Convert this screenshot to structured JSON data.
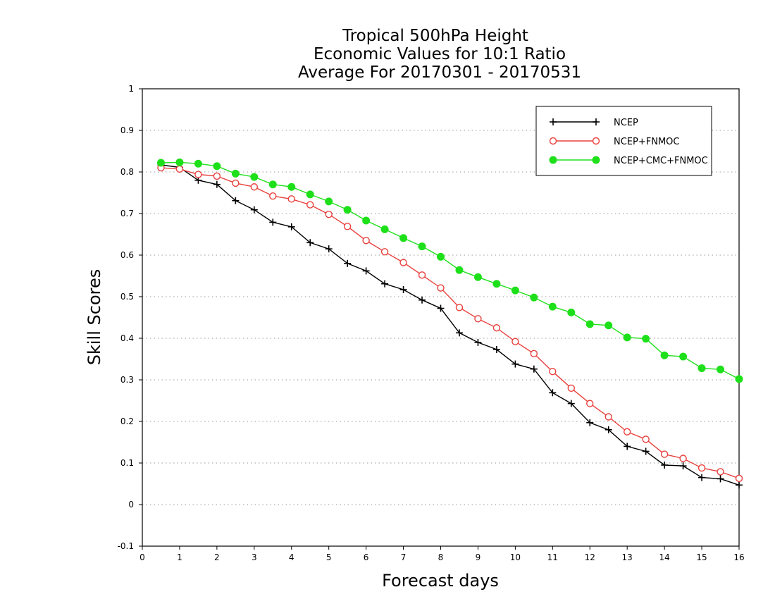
{
  "chart_data": {
    "type": "line",
    "title": [
      "Tropical 500hPa Height",
      "Economic Values for 10:1 Ratio",
      "Average For 20170301 - 20170531"
    ],
    "xlabel": "Forecast days",
    "ylabel": "Skill Scores",
    "xlim": [
      0,
      16
    ],
    "ylim": [
      -0.1,
      1
    ],
    "xticks": [
      "0",
      "1",
      "2",
      "3",
      "4",
      "5",
      "6",
      "7",
      "8",
      "9",
      "10",
      "11",
      "12",
      "13",
      "14",
      "15",
      "16"
    ],
    "yticks": [
      "-0.1",
      "0",
      "0.1",
      "0.2",
      "0.3",
      "0.4",
      "0.5",
      "0.6",
      "0.7",
      "0.8",
      "0.9",
      "1"
    ],
    "grid": true,
    "legend_position": "top-right",
    "x": [
      0.5,
      1,
      1.5,
      2,
      2.5,
      3,
      3.5,
      4,
      4.5,
      5,
      5.5,
      6,
      6.5,
      7,
      7.5,
      8,
      8.5,
      9,
      9.5,
      10,
      10.5,
      11,
      11.5,
      12,
      12.5,
      13,
      13.5,
      14,
      14.5,
      15,
      15.5,
      16
    ],
    "series": [
      {
        "name": "NCEP",
        "color": "#000000",
        "marker": "plus",
        "values": [
          0.817,
          0.811,
          0.78,
          0.77,
          0.731,
          0.709,
          0.679,
          0.668,
          0.63,
          0.615,
          0.58,
          0.562,
          0.531,
          0.517,
          0.492,
          0.472,
          0.413,
          0.39,
          0.373,
          0.338,
          0.326,
          0.269,
          0.243,
          0.197,
          0.18,
          0.14,
          0.128,
          0.095,
          0.093,
          0.065,
          0.062,
          0.047
        ]
      },
      {
        "name": "NCEP+FNMOC",
        "color": "#e8403c",
        "marker": "open-circle",
        "values": [
          0.81,
          0.807,
          0.794,
          0.79,
          0.773,
          0.764,
          0.742,
          0.735,
          0.721,
          0.698,
          0.669,
          0.635,
          0.608,
          0.582,
          0.552,
          0.521,
          0.474,
          0.447,
          0.425,
          0.392,
          0.363,
          0.32,
          0.28,
          0.243,
          0.211,
          0.175,
          0.157,
          0.121,
          0.111,
          0.088,
          0.079,
          0.063
        ]
      },
      {
        "name": "NCEP+CMC+FNMOC",
        "color": "#1ee01a",
        "marker": "filled-circle",
        "values": [
          0.822,
          0.823,
          0.82,
          0.814,
          0.796,
          0.788,
          0.77,
          0.764,
          0.746,
          0.729,
          0.709,
          0.683,
          0.662,
          0.641,
          0.621,
          0.596,
          0.564,
          0.547,
          0.531,
          0.515,
          0.498,
          0.476,
          0.462,
          0.434,
          0.431,
          0.402,
          0.399,
          0.359,
          0.356,
          0.328,
          0.325,
          0.302
        ]
      }
    ]
  }
}
